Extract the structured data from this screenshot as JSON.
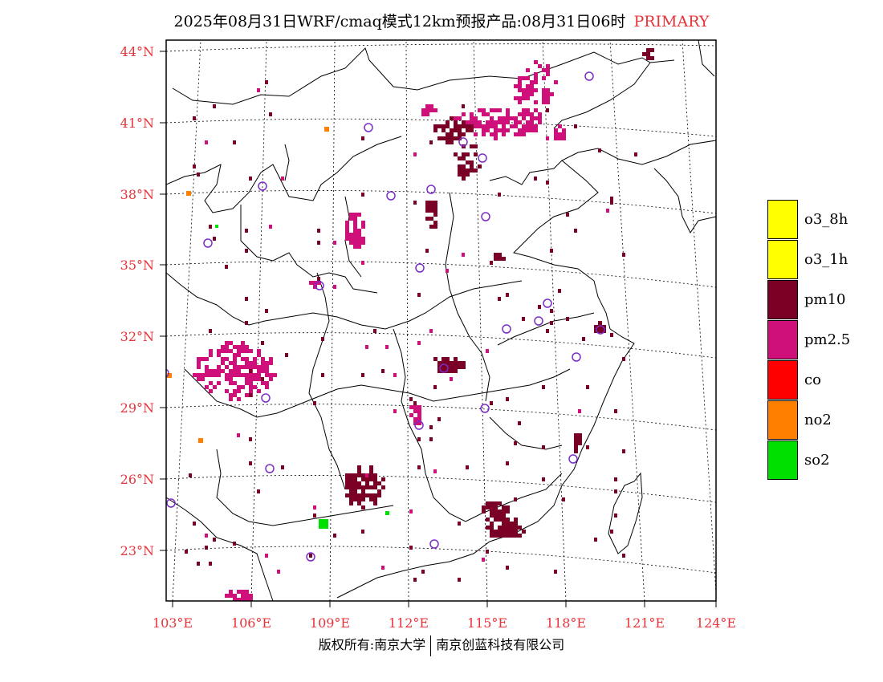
{
  "header": {
    "title": "2025年08月31日WRF/cmaq模式12km预报产品:08月31日06时",
    "tag": "PRIMARY"
  },
  "axes": {
    "lat_labels": [
      "44°N",
      "41°N",
      "38°N",
      "35°N",
      "32°N",
      "29°N",
      "26°N",
      "23°N"
    ],
    "lon_labels": [
      "103°E",
      "106°E",
      "109°E",
      "112°E",
      "115°E",
      "118°E",
      "121°E",
      "124°E"
    ],
    "label_color": "#e8333a"
  },
  "legend": {
    "items": [
      {
        "label": "o3_8h",
        "color": "#ffff00"
      },
      {
        "label": "o3_1h",
        "color": "#ffff00"
      },
      {
        "label": "pm10",
        "color": "#7a0026"
      },
      {
        "label": "pm2.5",
        "color": "#d0107a"
      },
      {
        "label": "co",
        "color": "#ff0000"
      },
      {
        "label": "no2",
        "color": "#ff7f00"
      },
      {
        "label": "so2",
        "color": "#00e000"
      }
    ]
  },
  "footer": {
    "left": "版权所有:南京大学",
    "right": "南京创蓝科技有限公司"
  },
  "colors": {
    "pm10": "#7a0026",
    "pm25": "#d0107a",
    "no2": "#ff7f00",
    "so2": "#00e000",
    "station": "#7b2cc9"
  }
}
